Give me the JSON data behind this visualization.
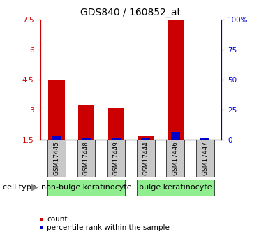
{
  "title": "GDS840 / 160852_at",
  "samples": [
    "GSM17445",
    "GSM17448",
    "GSM17449",
    "GSM17444",
    "GSM17446",
    "GSM17447"
  ],
  "red_values": [
    4.5,
    3.2,
    3.1,
    1.7,
    7.5,
    1.5
  ],
  "blue_values": [
    1.72,
    1.62,
    1.62,
    1.57,
    1.88,
    1.62
  ],
  "ylim_left": [
    1.5,
    7.5
  ],
  "ylim_right": [
    0,
    100
  ],
  "yticks_left": [
    1.5,
    3.0,
    4.5,
    6.0,
    7.5
  ],
  "ytick_labels_left": [
    "1.5",
    "3",
    "4.5",
    "6",
    "7.5"
  ],
  "yticks_right_vals": [
    0,
    25,
    50,
    75,
    100
  ],
  "ytick_labels_right": [
    "0",
    "25",
    "50",
    "75",
    "100%"
  ],
  "group1_label": "non-bulge keratinocyte",
  "group2_label": "bulge keratinocyte",
  "group1_indices": [
    0,
    1,
    2
  ],
  "group2_indices": [
    3,
    4,
    5
  ],
  "cell_type_label": "cell type",
  "legend_red": "count",
  "legend_blue": "percentile rank within the sample",
  "bar_width": 0.55,
  "red_color": "#CC0000",
  "blue_color": "#0000CC",
  "green_bg": "#90EE90",
  "tick_bg": "#C8C8C8",
  "title_fontsize": 10,
  "tick_fontsize": 7.5,
  "sample_fontsize": 6.5,
  "group_fontsize": 8,
  "legend_fontsize": 7.5
}
